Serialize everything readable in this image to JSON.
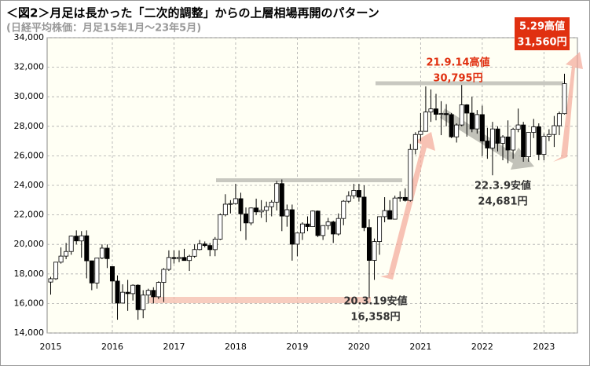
{
  "chart_data": {
    "type": "candlestick",
    "title": "＜図2＞月足は長かった「二次的調整」からの上層相場再開のパターン",
    "subtitle": "(日経平均株価：月足15年1月～23年5月)",
    "categories": [
      "2015",
      null,
      null,
      null,
      null,
      null,
      null,
      null,
      null,
      null,
      null,
      null,
      "2016",
      null,
      null,
      null,
      null,
      null,
      null,
      null,
      null,
      null,
      null,
      null,
      "2017",
      null,
      null,
      null,
      null,
      null,
      null,
      null,
      null,
      null,
      null,
      null,
      "2018",
      null,
      null,
      null,
      null,
      null,
      null,
      null,
      null,
      null,
      null,
      null,
      "2019",
      null,
      null,
      null,
      null,
      null,
      null,
      null,
      null,
      null,
      null,
      null,
      "2020",
      null,
      null,
      null,
      null,
      null,
      null,
      null,
      null,
      null,
      null,
      null,
      "2021",
      null,
      null,
      null,
      null,
      null,
      null,
      null,
      null,
      null,
      null,
      null,
      "2022",
      null,
      null,
      null,
      null,
      null,
      null,
      null,
      null,
      null,
      null,
      null,
      "2023",
      null,
      null,
      null,
      null
    ],
    "open": [
      17450,
      17674,
      18798,
      19207,
      19520,
      20563,
      20236,
      20585,
      18890,
      17388,
      19083,
      19747,
      18500,
      17518,
      16027,
      16759,
      16666,
      17235,
      15576,
      16569,
      16887,
      16450,
      17425,
      18308,
      19114,
      19041,
      19119,
      18909,
      19197,
      19651,
      20033,
      19925,
      19646,
      20356,
      22012,
      22725,
      22765,
      23098,
      22068,
      21454,
      22468,
      22202,
      22305,
      22554,
      22865,
      24120,
      21920,
      22351,
      20015,
      20773,
      21385,
      21206,
      22259,
      20601,
      21276,
      21521,
      20704,
      21756,
      22927,
      23294,
      23657,
      23205,
      21143,
      18917,
      20194,
      21878,
      22288,
      21710,
      23140,
      23185,
      22977,
      26434,
      27444,
      27663,
      28966,
      29179,
      28813,
      28860,
      28792,
      27284,
      28090,
      29453,
      28893,
      27822,
      28792,
      27002,
      26527,
      27821,
      26848,
      27280,
      26393,
      27802,
      28092,
      25937,
      27587,
      27969,
      26095,
      27327,
      27446,
      28041,
      28856
    ],
    "high": [
      17800,
      18800,
      19800,
      20100,
      20600,
      20950,
      20900,
      20950,
      18900,
      19100,
      20000,
      20000,
      18500,
      17900,
      17300,
      17600,
      17300,
      17300,
      16900,
      17000,
      17100,
      17500,
      18400,
      19600,
      19600,
      19600,
      19700,
      19300,
      20000,
      20300,
      20200,
      20100,
      20500,
      22100,
      23400,
      23000,
      24100,
      23500,
      22500,
      22500,
      23100,
      23000,
      22900,
      23000,
      24300,
      24400,
      22700,
      22700,
      20800,
      21500,
      21900,
      22300,
      22300,
      21300,
      21800,
      21600,
      22100,
      23000,
      23600,
      24100,
      24100,
      24000,
      21700,
      20400,
      21900,
      23200,
      23000,
      23300,
      23600,
      23800,
      26800,
      27600,
      28900,
      30700,
      30500,
      30200,
      29700,
      29500,
      28900,
      28200,
      30795,
      29500,
      30000,
      29100,
      29400,
      27900,
      28300,
      28000,
      27400,
      28400,
      27900,
      29200,
      28300,
      27600,
      28500,
      28200,
      27500,
      27800,
      28700,
      29000,
      31560
    ],
    "low": [
      16600,
      17600,
      18700,
      19000,
      19300,
      20000,
      19100,
      17700,
      16900,
      17000,
      19000,
      18400,
      16000,
      14900,
      16000,
      15500,
      16200,
      14900,
      15000,
      16000,
      16000,
      16300,
      16100,
      18200,
      18700,
      18800,
      18900,
      18200,
      19100,
      19600,
      19800,
      19200,
      19200,
      20300,
      21900,
      22100,
      22700,
      20900,
      20300,
      21300,
      22000,
      21800,
      21500,
      21900,
      22300,
      20900,
      21200,
      18900,
      19200,
      20300,
      20900,
      21200,
      20500,
      20300,
      21000,
      20100,
      20600,
      21300,
      22800,
      23100,
      22900,
      20900,
      16358,
      17600,
      19300,
      21500,
      21700,
      21700,
      22900,
      22900,
      22900,
      26100,
      27000,
      27800,
      28300,
      28400,
      27400,
      28000,
      27200,
      26900,
      28000,
      27300,
      27600,
      27500,
      26000,
      25800,
      24681,
      26300,
      25700,
      25500,
      25800,
      27600,
      25600,
      25600,
      27200,
      25700,
      25700,
      27000,
      26600,
      27400,
      28800
    ],
    "close": [
      17674,
      18798,
      19207,
      19520,
      20563,
      20236,
      20585,
      18890,
      17388,
      19083,
      19747,
      19034,
      17518,
      16027,
      16759,
      16666,
      17235,
      15576,
      16569,
      16887,
      16450,
      17425,
      18308,
      19114,
      19041,
      19119,
      18909,
      19197,
      19651,
      20033,
      19925,
      19646,
      20356,
      22012,
      22725,
      22765,
      23098,
      22068,
      21454,
      22468,
      22202,
      22305,
      22554,
      22865,
      24120,
      21920,
      22351,
      20015,
      20773,
      21385,
      21206,
      22259,
      20601,
      21276,
      21521,
      20704,
      21756,
      22927,
      23294,
      23657,
      23205,
      21143,
      18917,
      20194,
      21878,
      22288,
      21710,
      23140,
      23185,
      22977,
      26434,
      27444,
      27663,
      28966,
      29179,
      28813,
      28860,
      28792,
      27284,
      28090,
      29453,
      28893,
      27822,
      28792,
      27002,
      26527,
      27821,
      26848,
      27280,
      26393,
      27802,
      28092,
      25937,
      27587,
      27969,
      26095,
      27327,
      27446,
      28041,
      28856,
      30888
    ],
    "up_color": "#ffffff",
    "down_color": "#000000",
    "ylim": [
      14000,
      34000
    ],
    "yticks": [
      {
        "value": 14000,
        "label": "14,000"
      },
      {
        "value": 16000,
        "label": "16,000"
      },
      {
        "value": 18000,
        "label": "18,000"
      },
      {
        "value": 20000,
        "label": "20,000"
      },
      {
        "value": 22000,
        "label": "22,000"
      },
      {
        "value": 24000,
        "label": "24,000"
      },
      {
        "value": 26000,
        "label": "26,000"
      },
      {
        "value": 28000,
        "label": "28,000"
      },
      {
        "value": 30000,
        "label": "30,000"
      },
      {
        "value": 32000,
        "label": "32,000"
      },
      {
        "value": 34000,
        "label": "34,000"
      }
    ],
    "grid": true,
    "annotations": [
      {
        "lines": [
          "21.9.14高値",
          "30,795円"
        ],
        "color": "#e03010"
      },
      {
        "lines": [
          "22.3.9安値",
          "24,681円"
        ],
        "color": "#333333"
      },
      {
        "lines": [
          "20.3.19安値",
          "16,358円"
        ],
        "color": "#333333"
      },
      {
        "lines": [
          "5.29高値",
          "31,560円"
        ],
        "color": "#ffffff"
      }
    ]
  }
}
